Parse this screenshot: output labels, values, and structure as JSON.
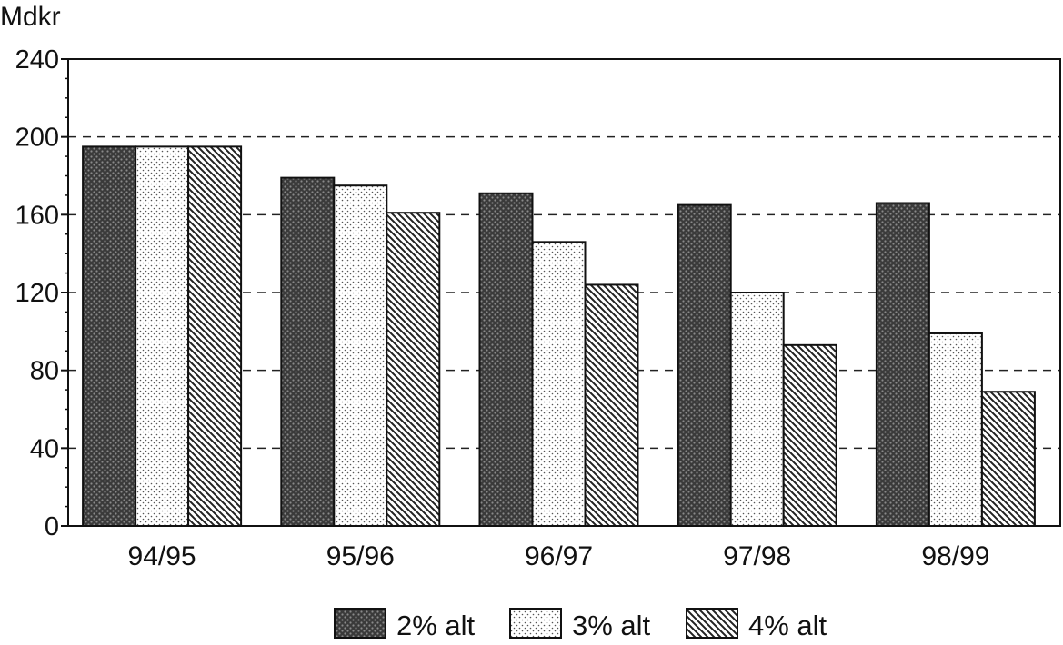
{
  "chart_data": {
    "type": "bar",
    "title": "",
    "ylabel": "Mdkr",
    "xlabel": "",
    "categories": [
      "94/95",
      "95/96",
      "96/97",
      "97/98",
      "98/99"
    ],
    "yticks": [
      "0",
      "40",
      "80",
      "120",
      "160",
      "200",
      "240"
    ],
    "ylim": [
      0,
      240
    ],
    "grid": "horizontal dashed",
    "legend_position": "bottom",
    "series": [
      {
        "name": "2% alt",
        "pattern": "dense-dots",
        "values": [
          195,
          179,
          171,
          165,
          166
        ]
      },
      {
        "name": "3% alt",
        "pattern": "light-dots",
        "values": [
          195,
          175,
          146,
          120,
          99
        ]
      },
      {
        "name": "4% alt",
        "pattern": "diagonal-hatch",
        "values": [
          195,
          161,
          124,
          93,
          69
        ]
      }
    ]
  }
}
